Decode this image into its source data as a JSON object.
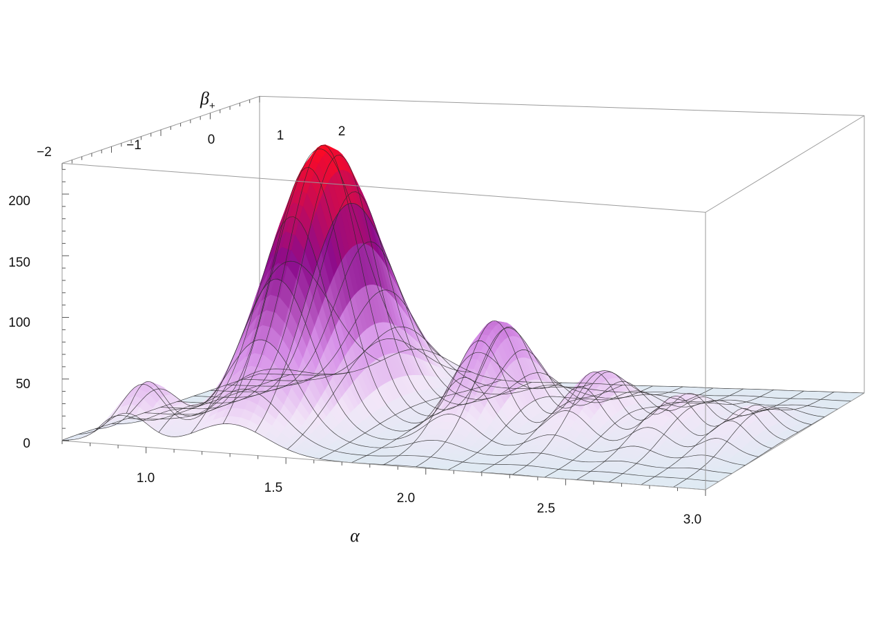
{
  "chart_data": {
    "type": "surface3d",
    "title": "",
    "xlabel": "α",
    "ylabel_main": "β",
    "ylabel_sub": "+",
    "zlabel": "",
    "xlim": [
      0.7,
      3.0
    ],
    "ylim": [
      -2,
      2
    ],
    "zlim": [
      0,
      225
    ],
    "x_ticks": [
      "1.0",
      "1.5",
      "2.0",
      "2.5",
      "3.0"
    ],
    "y_ticks": [
      "−2",
      "−1",
      "0",
      "1",
      "2"
    ],
    "z_ticks": [
      "0",
      "50",
      "100",
      "150",
      "200"
    ],
    "peaks": [
      {
        "alpha": 0.93,
        "beta": -1.6,
        "height": 45,
        "width_alpha": 0.08,
        "width_beta": 0.38
      },
      {
        "alpha": 1.3,
        "beta": 0.0,
        "height": 220,
        "width_alpha": 0.13,
        "width_beta": 0.95
      },
      {
        "alpha": 1.93,
        "beta": 0.0,
        "height": 85,
        "width_alpha": 0.09,
        "width_beta": 0.65
      },
      {
        "alpha": 2.3,
        "beta": 0.0,
        "height": 48,
        "width_alpha": 0.08,
        "width_beta": 0.65
      },
      {
        "alpha": 2.6,
        "beta": 0.0,
        "height": 32,
        "width_alpha": 0.07,
        "width_beta": 0.65
      },
      {
        "alpha": 2.85,
        "beta": 0.0,
        "height": 25,
        "width_alpha": 0.06,
        "width_beta": 0.6
      }
    ],
    "colormap": [
      "#dfeaf3",
      "#f2e6f8",
      "#d68ee8",
      "#8c0c8c",
      "#ff0a22"
    ],
    "mesh_lines": true,
    "bounding_box": true
  }
}
